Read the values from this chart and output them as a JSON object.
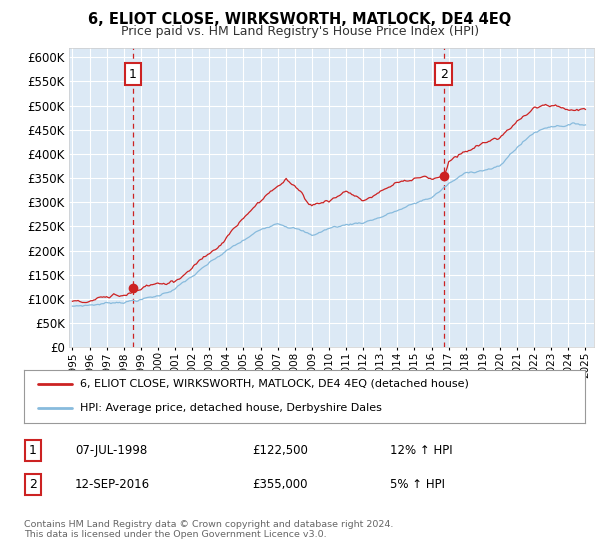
{
  "title": "6, ELIOT CLOSE, WIRKSWORTH, MATLOCK, DE4 4EQ",
  "subtitle": "Price paid vs. HM Land Registry's House Price Index (HPI)",
  "plot_bg_color": "#dce9f5",
  "grid_color": "#ffffff",
  "ylim": [
    0,
    620000
  ],
  "yticks": [
    0,
    50000,
    100000,
    150000,
    200000,
    250000,
    300000,
    350000,
    400000,
    450000,
    500000,
    550000,
    600000
  ],
  "sale1_year": 1998.54,
  "sale1_price": 122500,
  "sale2_year": 2016.71,
  "sale2_price": 355000,
  "legend_line1": "6, ELIOT CLOSE, WIRKSWORTH, MATLOCK, DE4 4EQ (detached house)",
  "legend_line2": "HPI: Average price, detached house, Derbyshire Dales",
  "table_row1": [
    "1",
    "07-JUL-1998",
    "£122,500",
    "12% ↑ HPI"
  ],
  "table_row2": [
    "2",
    "12-SEP-2016",
    "£355,000",
    "5% ↑ HPI"
  ],
  "footnote": "Contains HM Land Registry data © Crown copyright and database right 2024.\nThis data is licensed under the Open Government Licence v3.0.",
  "red_color": "#cc2222",
  "blue_color": "#88bbdd",
  "x_start_year": 1995,
  "x_end_year": 2025
}
